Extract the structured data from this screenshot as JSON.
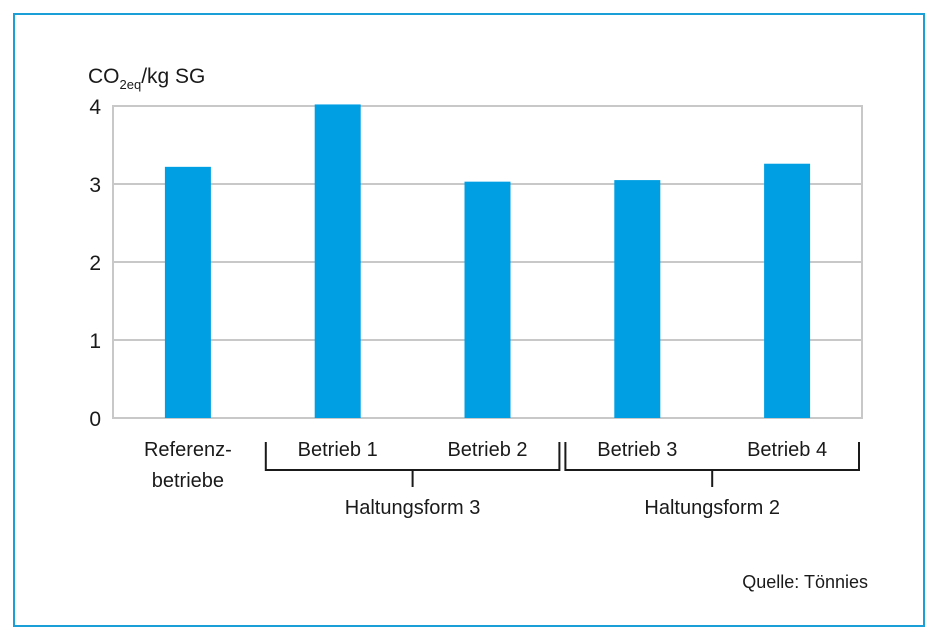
{
  "chart_data": {
    "type": "bar",
    "ylabel": {
      "main": "CO",
      "subscript": "2eq",
      "suffix": "/kg SG"
    },
    "ylim": [
      0,
      4
    ],
    "yticks": [
      0,
      1,
      2,
      3,
      4
    ],
    "grid": true,
    "categories": [
      [
        "Referenz-",
        "betriebe"
      ],
      [
        "Betrieb 1"
      ],
      [
        "Betrieb 2"
      ],
      [
        "Betrieb 3"
      ],
      [
        "Betrieb 4"
      ]
    ],
    "values": [
      3.22,
      4.02,
      3.03,
      3.05,
      3.26
    ],
    "groups": [
      {
        "label": "Haltungsform 3",
        "from": 1,
        "to": 2
      },
      {
        "label": "Haltungsform 2",
        "from": 3,
        "to": 4
      }
    ],
    "source": "Quelle: Tönnies",
    "colors": {
      "bar": "#009fe3",
      "grid": "#c8c8c8",
      "frame": "#1a9fd6"
    }
  }
}
